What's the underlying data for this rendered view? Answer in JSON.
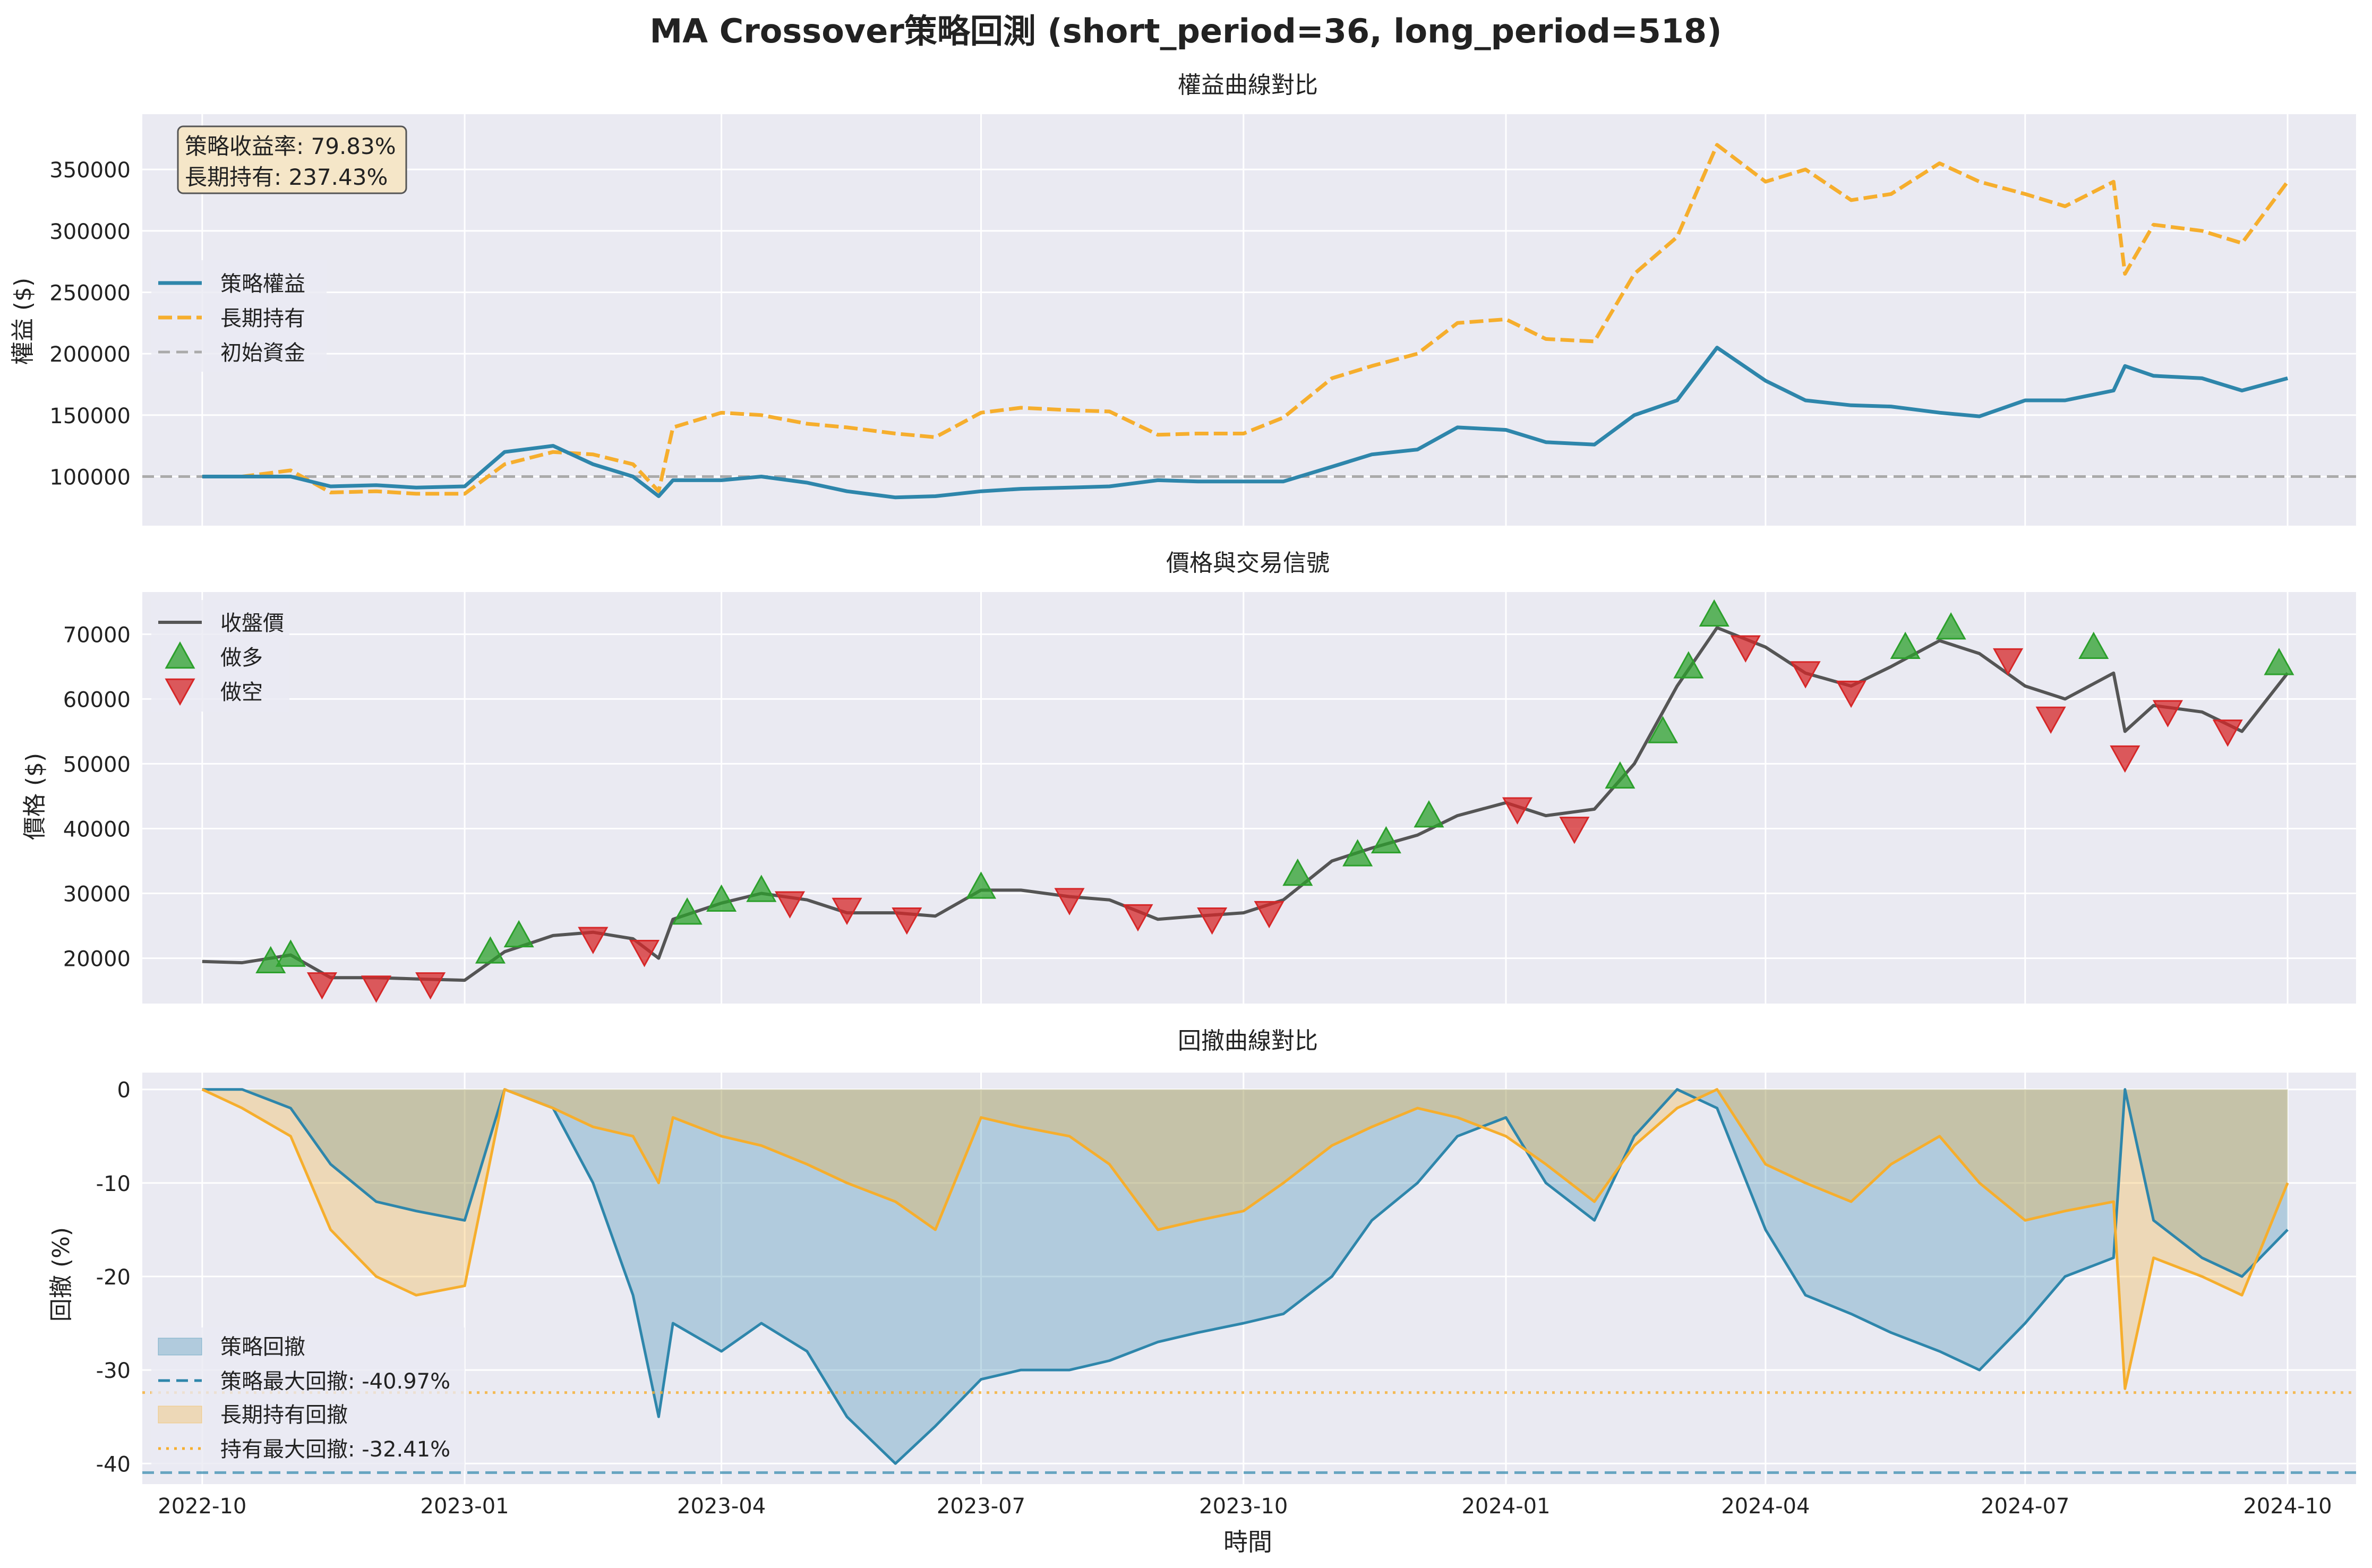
{
  "figure": {
    "suptitle": "MA Crossover策略回測 (short_period=36, long_period=518)",
    "xlabel": "時間",
    "x_ticks": [
      "2022-10",
      "2023-01",
      "2023-04",
      "2023-07",
      "2023-10",
      "2024-01",
      "2024-04",
      "2024-07",
      "2024-10"
    ],
    "x_tick_dates": [
      "2022-10-01",
      "2023-01-01",
      "2023-04-01",
      "2023-07-01",
      "2023-10-01",
      "2024-01-01",
      "2024-04-01",
      "2024-07-01",
      "2024-10-01"
    ]
  },
  "colors": {
    "strategy": "#2e86ab",
    "hold": "#f6ae2d",
    "long_signal": "#2ca02c",
    "short_signal": "#d62728",
    "price": "#555555",
    "axes_bg": "#eaeaf2",
    "grid": "#ffffff",
    "baseline": "#aaaaaa"
  },
  "chart_data": [
    {
      "type": "line",
      "title": "權益曲線對比",
      "ylabel": "權益 ($)",
      "ylim": [
        60000,
        395000
      ],
      "y_ticks": [
        "100000",
        "150000",
        "200000",
        "250000",
        "300000",
        "350000"
      ],
      "y_tick_values": [
        100000,
        150000,
        200000,
        250000,
        300000,
        350000
      ],
      "annotation": [
        "策略收益率: 79.83%",
        "長期持有: 237.43%"
      ],
      "legend": [
        "策略權益",
        "長期持有",
        "初始資金"
      ],
      "legend_position": "upper-left",
      "baseline": 100000,
      "x": [
        "2022-10-01",
        "2022-10-15",
        "2022-11-01",
        "2022-11-15",
        "2022-12-01",
        "2022-12-15",
        "2023-01-01",
        "2023-01-15",
        "2023-02-01",
        "2023-02-15",
        "2023-03-01",
        "2023-03-10",
        "2023-03-15",
        "2023-04-01",
        "2023-04-15",
        "2023-05-01",
        "2023-05-15",
        "2023-06-01",
        "2023-06-15",
        "2023-07-01",
        "2023-07-15",
        "2023-08-01",
        "2023-08-15",
        "2023-09-01",
        "2023-09-15",
        "2023-10-01",
        "2023-10-15",
        "2023-11-01",
        "2023-11-15",
        "2023-12-01",
        "2023-12-15",
        "2024-01-01",
        "2024-01-15",
        "2024-02-01",
        "2024-02-15",
        "2024-03-01",
        "2024-03-15",
        "2024-04-01",
        "2024-04-15",
        "2024-05-01",
        "2024-05-15",
        "2024-06-01",
        "2024-06-15",
        "2024-07-01",
        "2024-07-15",
        "2024-08-01",
        "2024-08-05",
        "2024-08-15",
        "2024-09-01",
        "2024-09-15",
        "2024-10-01"
      ],
      "series": [
        {
          "name": "策略權益",
          "values": [
            100000,
            100000,
            100000,
            92000,
            93000,
            91000,
            92000,
            120000,
            125000,
            110000,
            100000,
            84000,
            97000,
            97000,
            100000,
            95000,
            88000,
            83000,
            84000,
            88000,
            90000,
            91000,
            92000,
            97000,
            96000,
            96000,
            96000,
            108000,
            118000,
            122000,
            140000,
            138000,
            128000,
            126000,
            150000,
            162000,
            205000,
            178000,
            162000,
            158000,
            157000,
            152000,
            149000,
            162000,
            162000,
            170000,
            190000,
            182000,
            180000,
            170000,
            180000
          ]
        },
        {
          "name": "長期持有",
          "values": [
            100000,
            100000,
            105000,
            87000,
            88000,
            86000,
            86000,
            110000,
            120000,
            118000,
            110000,
            88000,
            140000,
            152000,
            150000,
            143000,
            140000,
            135000,
            132000,
            152000,
            156000,
            154000,
            153000,
            134000,
            135000,
            135000,
            148000,
            180000,
            190000,
            200000,
            225000,
            228000,
            212000,
            210000,
            265000,
            295000,
            370000,
            340000,
            350000,
            325000,
            330000,
            355000,
            340000,
            330000,
            320000,
            340000,
            265000,
            305000,
            300000,
            290000,
            340000
          ]
        }
      ]
    },
    {
      "type": "line",
      "title": "價格與交易信號",
      "ylabel": "價格 ($)",
      "ylim": [
        13000,
        76500
      ],
      "y_ticks": [
        "20000",
        "30000",
        "40000",
        "50000",
        "60000",
        "70000"
      ],
      "y_tick_values": [
        20000,
        30000,
        40000,
        50000,
        60000,
        70000
      ],
      "legend": [
        "收盤價",
        "做多",
        "做空"
      ],
      "legend_position": "upper-left",
      "x": [
        "2022-10-01",
        "2022-10-15",
        "2022-11-01",
        "2022-11-15",
        "2022-12-01",
        "2022-12-15",
        "2023-01-01",
        "2023-01-15",
        "2023-02-01",
        "2023-02-15",
        "2023-03-01",
        "2023-03-10",
        "2023-03-15",
        "2023-04-01",
        "2023-04-15",
        "2023-05-01",
        "2023-05-15",
        "2023-06-01",
        "2023-06-15",
        "2023-07-01",
        "2023-07-15",
        "2023-08-01",
        "2023-08-15",
        "2023-09-01",
        "2023-09-15",
        "2023-10-01",
        "2023-10-15",
        "2023-11-01",
        "2023-11-15",
        "2023-12-01",
        "2023-12-15",
        "2024-01-01",
        "2024-01-15",
        "2024-02-01",
        "2024-02-15",
        "2024-03-01",
        "2024-03-15",
        "2024-04-01",
        "2024-04-15",
        "2024-05-01",
        "2024-05-15",
        "2024-06-01",
        "2024-06-15",
        "2024-07-01",
        "2024-07-15",
        "2024-08-01",
        "2024-08-05",
        "2024-08-15",
        "2024-09-01",
        "2024-09-15",
        "2024-10-01"
      ],
      "series": [
        {
          "name": "收盤價",
          "values": [
            19500,
            19300,
            20500,
            17000,
            17000,
            16800,
            16600,
            21000,
            23500,
            24000,
            23000,
            20000,
            26000,
            28500,
            30000,
            29000,
            27000,
            27000,
            26500,
            30500,
            30500,
            29500,
            29000,
            26000,
            26500,
            27000,
            29000,
            35000,
            37000,
            39000,
            42000,
            44000,
            42000,
            43000,
            50000,
            62000,
            71000,
            68000,
            64000,
            62000,
            65000,
            69000,
            67000,
            62000,
            60000,
            64000,
            55000,
            59000,
            58000,
            55000,
            64000
          ]
        }
      ],
      "signals": {
        "long": [
          {
            "x": "2022-10-25",
            "y": 19500
          },
          {
            "x": "2022-11-01",
            "y": 20500
          },
          {
            "x": "2023-01-10",
            "y": 21000
          },
          {
            "x": "2023-01-20",
            "y": 23500
          },
          {
            "x": "2023-03-20",
            "y": 27000
          },
          {
            "x": "2023-04-01",
            "y": 29000
          },
          {
            "x": "2023-04-15",
            "y": 30500
          },
          {
            "x": "2023-07-01",
            "y": 31000
          },
          {
            "x": "2023-10-20",
            "y": 33000
          },
          {
            "x": "2023-11-10",
            "y": 36000
          },
          {
            "x": "2023-11-20",
            "y": 38000
          },
          {
            "x": "2023-12-05",
            "y": 42000
          },
          {
            "x": "2024-02-10",
            "y": 48000
          },
          {
            "x": "2024-02-25",
            "y": 55000
          },
          {
            "x": "2024-03-05",
            "y": 65000
          },
          {
            "x": "2024-03-14",
            "y": 73000
          },
          {
            "x": "2024-05-20",
            "y": 68000
          },
          {
            "x": "2024-06-05",
            "y": 71000
          },
          {
            "x": "2024-07-25",
            "y": 68000
          },
          {
            "x": "2024-09-28",
            "y": 65500
          }
        ],
        "short": [
          {
            "x": "2022-11-12",
            "y": 16000
          },
          {
            "x": "2022-12-01",
            "y": 15500
          },
          {
            "x": "2022-12-20",
            "y": 16000
          },
          {
            "x": "2023-02-15",
            "y": 23000
          },
          {
            "x": "2023-03-05",
            "y": 21000
          },
          {
            "x": "2023-04-25",
            "y": 28500
          },
          {
            "x": "2023-05-15",
            "y": 27500
          },
          {
            "x": "2023-06-05",
            "y": 26000
          },
          {
            "x": "2023-08-01",
            "y": 29000
          },
          {
            "x": "2023-08-25",
            "y": 26500
          },
          {
            "x": "2023-09-20",
            "y": 26000
          },
          {
            "x": "2023-10-10",
            "y": 27000
          },
          {
            "x": "2024-01-05",
            "y": 43000
          },
          {
            "x": "2024-01-25",
            "y": 40000
          },
          {
            "x": "2024-03-25",
            "y": 68000
          },
          {
            "x": "2024-04-15",
            "y": 64000
          },
          {
            "x": "2024-05-01",
            "y": 61000
          },
          {
            "x": "2024-06-25",
            "y": 66000
          },
          {
            "x": "2024-07-10",
            "y": 57000
          },
          {
            "x": "2024-08-05",
            "y": 51000
          },
          {
            "x": "2024-08-20",
            "y": 58000
          },
          {
            "x": "2024-09-10",
            "y": 55000
          }
        ]
      }
    },
    {
      "type": "area",
      "title": "回撤曲線對比",
      "ylabel": "回撤 (%)",
      "ylim": [
        -42.2,
        1.8
      ],
      "y_ticks": [
        "0",
        "-10",
        "-20",
        "-30",
        "-40"
      ],
      "y_tick_values": [
        0,
        -10,
        -20,
        -30,
        -40
      ],
      "legend": [
        "策略回撤",
        "策略最大回撤: -40.97%",
        "長期持有回撤",
        "持有最大回撤: -32.41%"
      ],
      "legend_position": "lower-left",
      "max_drawdown": {
        "strategy": -40.97,
        "hold": -32.41
      },
      "x": [
        "2022-10-01",
        "2022-10-15",
        "2022-11-01",
        "2022-11-15",
        "2022-12-01",
        "2022-12-15",
        "2023-01-01",
        "2023-01-15",
        "2023-02-01",
        "2023-02-15",
        "2023-03-01",
        "2023-03-10",
        "2023-03-15",
        "2023-04-01",
        "2023-04-15",
        "2023-05-01",
        "2023-05-15",
        "2023-06-01",
        "2023-06-15",
        "2023-07-01",
        "2023-07-15",
        "2023-08-01",
        "2023-08-15",
        "2023-09-01",
        "2023-09-15",
        "2023-10-01",
        "2023-10-15",
        "2023-11-01",
        "2023-11-15",
        "2023-12-01",
        "2023-12-15",
        "2024-01-01",
        "2024-01-15",
        "2024-02-01",
        "2024-02-15",
        "2024-03-01",
        "2024-03-15",
        "2024-04-01",
        "2024-04-15",
        "2024-05-01",
        "2024-05-15",
        "2024-06-01",
        "2024-06-15",
        "2024-07-01",
        "2024-07-15",
        "2024-08-01",
        "2024-08-05",
        "2024-08-15",
        "2024-09-01",
        "2024-09-15",
        "2024-10-01"
      ],
      "series": [
        {
          "name": "策略回撤",
          "values": [
            0,
            0,
            -2,
            -8,
            -12,
            -13,
            -14,
            0,
            -2,
            -10,
            -22,
            -35,
            -25,
            -28,
            -25,
            -28,
            -35,
            -40,
            -36,
            -31,
            -30,
            -30,
            -29,
            -27,
            -26,
            -25,
            -24,
            -20,
            -14,
            -10,
            -5,
            -3,
            -10,
            -14,
            -5,
            0,
            -2,
            -15,
            -22,
            -24,
            -26,
            -28,
            -30,
            -25,
            -20,
            -18,
            0,
            -14,
            -18,
            -20,
            -15
          ]
        },
        {
          "name": "長期持有回撤",
          "values": [
            0,
            -2,
            -5,
            -15,
            -20,
            -22,
            -21,
            0,
            -2,
            -4,
            -5,
            -10,
            -3,
            -5,
            -6,
            -8,
            -10,
            -12,
            -15,
            -3,
            -4,
            -5,
            -8,
            -15,
            -14,
            -13,
            -10,
            -6,
            -4,
            -2,
            -3,
            -5,
            -8,
            -12,
            -6,
            -2,
            0,
            -8,
            -10,
            -12,
            -8,
            -5,
            -10,
            -14,
            -13,
            -12,
            -32,
            -18,
            -20,
            -22,
            -10
          ]
        }
      ]
    }
  ]
}
